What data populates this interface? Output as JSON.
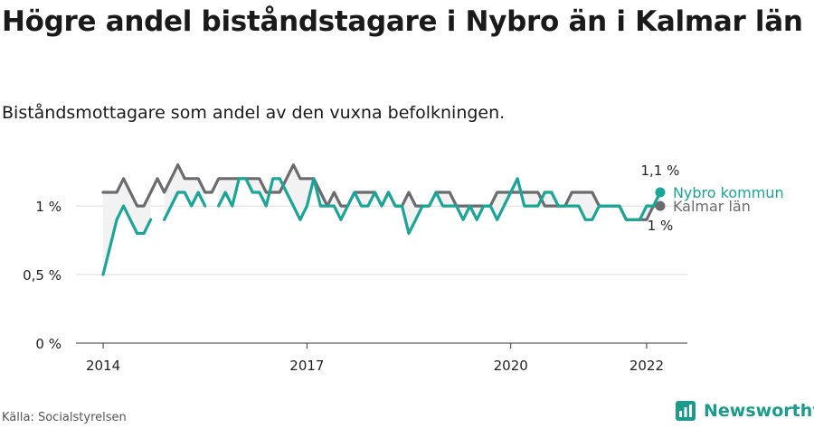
{
  "title": "Högre andel biståndstagare i Nybro än i Kalmar län",
  "subtitle": "Biståndsmottagare som andel av den vuxna befolkningen.",
  "source": "Källa: Socialstyrelsen",
  "brand": {
    "name": "Newsworthy",
    "icon": "newsworthy-logo-icon",
    "color": "#1a9b8b"
  },
  "chart_data": {
    "type": "line",
    "y_ticks": [
      {
        "value": 0,
        "label": "0 %"
      },
      {
        "value": 0.5,
        "label": "0,5 %"
      },
      {
        "value": 1,
        "label": "1 %"
      }
    ],
    "x_ticks": [
      {
        "value": 2014,
        "label": "2014"
      },
      {
        "value": 2017,
        "label": "2017"
      },
      {
        "value": 2020,
        "label": "2020"
      },
      {
        "value": 2022,
        "label": "2022"
      }
    ],
    "ylim": [
      0,
      1.35
    ],
    "xlim": [
      2013.6,
      2022.6
    ],
    "grid": true,
    "series": [
      {
        "name": "Kalmar län",
        "color": "#6b6a6e",
        "end_label": "1 %",
        "x": [
          2014.0,
          2014.1,
          2014.2,
          2014.3,
          2014.4,
          2014.5,
          2014.6,
          2014.7,
          2014.8,
          2014.9,
          2015.0,
          2015.1,
          2015.2,
          2015.3,
          2015.4,
          2015.5,
          2015.6,
          2015.7,
          2015.8,
          2015.9,
          2016.0,
          2016.1,
          2016.2,
          2016.3,
          2016.4,
          2016.5,
          2016.6,
          2016.7,
          2016.8,
          2016.9,
          2017.0,
          2017.1,
          2017.2,
          2017.3,
          2017.4,
          2017.5,
          2017.6,
          2017.7,
          2017.8,
          2017.9,
          2018.0,
          2018.1,
          2018.2,
          2018.3,
          2018.4,
          2018.5,
          2018.6,
          2018.7,
          2018.8,
          2018.9,
          2019.0,
          2019.1,
          2019.2,
          2019.3,
          2019.4,
          2019.5,
          2019.6,
          2019.7,
          2019.8,
          2019.9,
          2020.0,
          2020.1,
          2020.2,
          2020.3,
          2020.4,
          2020.5,
          2020.6,
          2020.7,
          2020.8,
          2020.9,
          2021.0,
          2021.1,
          2021.2,
          2021.3,
          2021.4,
          2021.5,
          2021.6,
          2021.7,
          2021.8,
          2021.9,
          2022.0,
          2022.1,
          2022.2
        ],
        "y": [
          1.1,
          1.1,
          1.1,
          1.2,
          1.1,
          1.0,
          1.0,
          1.1,
          1.2,
          1.1,
          1.2,
          1.3,
          1.2,
          1.2,
          1.2,
          1.1,
          1.1,
          1.2,
          1.2,
          1.2,
          1.2,
          1.2,
          1.2,
          1.2,
          1.1,
          1.1,
          1.1,
          1.2,
          1.3,
          1.2,
          1.2,
          1.2,
          1.1,
          1.0,
          1.1,
          1.0,
          1.0,
          1.1,
          1.1,
          1.1,
          1.1,
          1.0,
          1.1,
          1.0,
          1.0,
          1.1,
          1.0,
          1.0,
          1.0,
          1.1,
          1.1,
          1.1,
          1.0,
          1.0,
          1.0,
          1.0,
          1.0,
          1.0,
          1.1,
          1.1,
          1.1,
          1.1,
          1.1,
          1.1,
          1.1,
          1.0,
          1.0,
          1.0,
          1.0,
          1.1,
          1.1,
          1.1,
          1.1,
          1.0,
          1.0,
          1.0,
          1.0,
          0.9,
          0.9,
          0.9,
          0.9,
          1.0,
          1.0
        ]
      },
      {
        "name": "Nybro kommun",
        "color": "#1aa597",
        "end_label": "1,1 %",
        "x": [
          2014.0,
          2014.1,
          2014.2,
          2014.3,
          2014.4,
          2014.5,
          2014.6,
          2014.7,
          2014.8,
          2014.9,
          2015.0,
          2015.1,
          2015.2,
          2015.3,
          2015.4,
          2015.5,
          2015.6,
          2015.7,
          2015.8,
          2015.9,
          2016.0,
          2016.1,
          2016.2,
          2016.3,
          2016.4,
          2016.5,
          2016.6,
          2016.7,
          2016.8,
          2016.9,
          2017.0,
          2017.1,
          2017.2,
          2017.3,
          2017.4,
          2017.5,
          2017.6,
          2017.7,
          2017.8,
          2017.9,
          2018.0,
          2018.1,
          2018.2,
          2018.3,
          2018.4,
          2018.5,
          2018.6,
          2018.7,
          2018.8,
          2018.9,
          2019.0,
          2019.1,
          2019.2,
          2019.3,
          2019.4,
          2019.5,
          2019.6,
          2019.7,
          2019.8,
          2019.9,
          2020.0,
          2020.1,
          2020.2,
          2020.3,
          2020.4,
          2020.5,
          2020.6,
          2020.7,
          2020.8,
          2020.9,
          2021.0,
          2021.1,
          2021.2,
          2021.3,
          2021.4,
          2021.5,
          2021.6,
          2021.7,
          2021.8,
          2021.9,
          2022.0,
          2022.1,
          2022.2
        ],
        "y": [
          0.5,
          0.7,
          0.9,
          1.0,
          0.9,
          0.8,
          0.8,
          0.9,
          null,
          0.9,
          1.0,
          1.1,
          1.1,
          1.0,
          1.1,
          1.0,
          null,
          1.0,
          1.1,
          1.0,
          1.2,
          1.2,
          1.1,
          1.1,
          1.0,
          1.2,
          1.2,
          1.1,
          1.0,
          0.9,
          1.0,
          1.2,
          1.0,
          1.0,
          1.0,
          0.9,
          1.0,
          1.1,
          1.0,
          1.0,
          1.1,
          1.0,
          1.1,
          1.0,
          1.0,
          0.8,
          0.9,
          1.0,
          1.0,
          1.1,
          1.0,
          1.0,
          1.0,
          0.9,
          1.0,
          0.9,
          1.0,
          1.0,
          0.9,
          1.0,
          1.1,
          1.2,
          1.0,
          1.0,
          1.0,
          1.1,
          1.1,
          1.0,
          1.0,
          1.0,
          1.0,
          0.9,
          0.9,
          1.0,
          1.0,
          1.0,
          1.0,
          0.9,
          0.9,
          0.9,
          1.0,
          1.0,
          1.1
        ]
      }
    ]
  }
}
